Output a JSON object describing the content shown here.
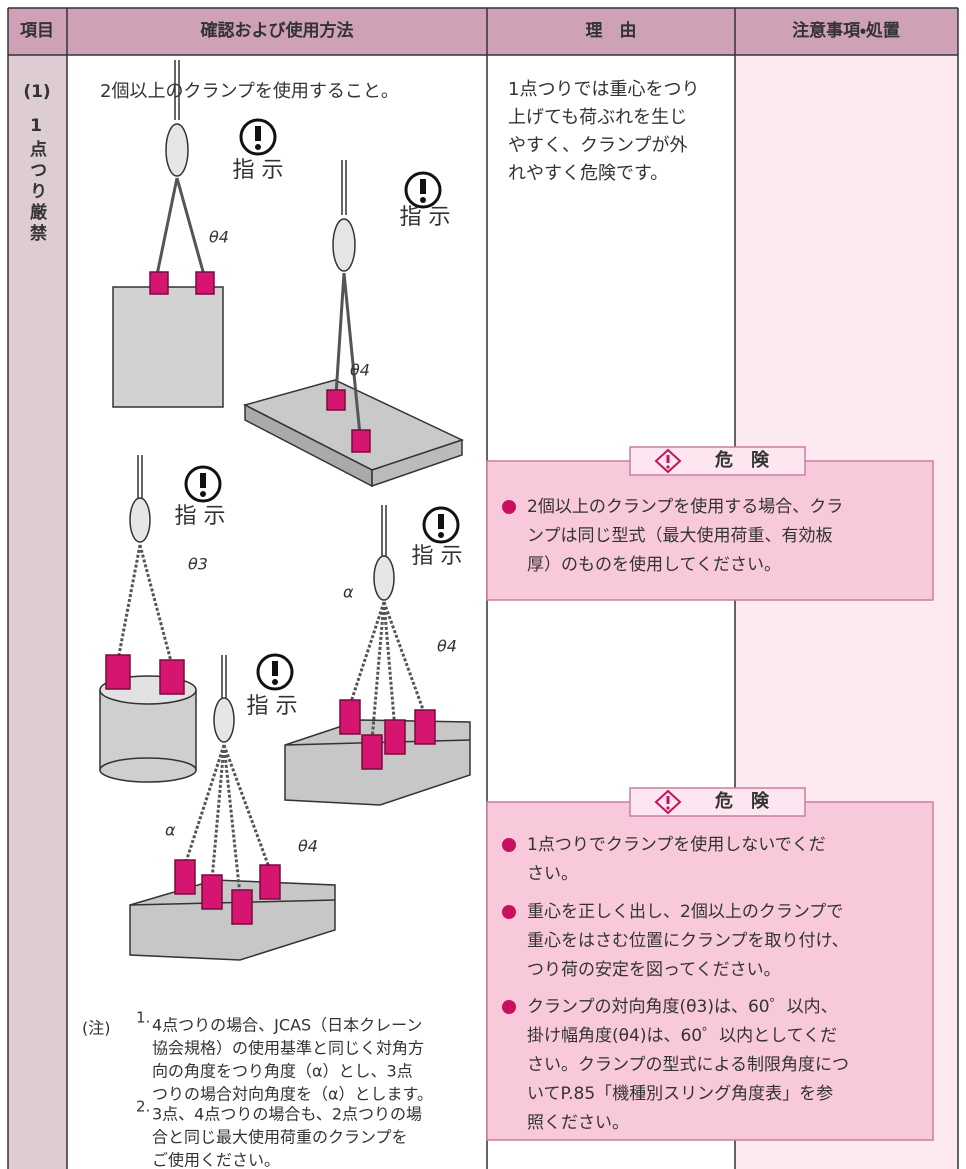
{
  "header": {
    "columns": [
      "項目",
      "確認および使用方法",
      "理　由",
      "注意事項・処置"
    ]
  },
  "item": {
    "number": "(1)",
    "label": "1点つり厳禁"
  },
  "method": {
    "instruction": "2個以上のクランプを使用すること。",
    "figures": [
      {
        "icon_label": "指 示",
        "angles": [
          "θ4"
        ]
      },
      {
        "icon_label": "指 示",
        "angles": [
          "θ4"
        ]
      },
      {
        "icon_label": "指 示",
        "angles": [
          "θ3"
        ]
      },
      {
        "icon_label": "指 示",
        "angles": [
          "α",
          "θ4"
        ]
      },
      {
        "icon_label": "指 示",
        "angles": [
          "α",
          "θ4"
        ]
      }
    ],
    "notes": {
      "marker": "(注)",
      "items": [
        {
          "number": "1.",
          "lines": [
            "4点つりの場合、JCAS（日本クレーン",
            "協会規格）の使用基準と同じく対角方",
            "向の角度をつり角度（α）とし、3点",
            "つりの場合対向角度を（α）とします。"
          ]
        },
        {
          "number": "2.",
          "lines": [
            "3点、4点つりの場合も、2点つりの場",
            "合と同じ最大使用荷重のクランプを",
            "ご使用ください。"
          ]
        }
      ]
    }
  },
  "reason": {
    "lines": [
      "1点つりでは重心をつり",
      "上げても荷ぶれを生じ",
      "やすく、クランプが外",
      "れやすく危険です。"
    ]
  },
  "dangers": [
    {
      "heading": "危　険",
      "bullets": [
        {
          "lines": [
            "2個以上のクランプを使用する場合、クラ",
            "ンプは同じ型式（最大使用荷重、有効板",
            "厚）のものを使用してください。"
          ]
        }
      ]
    },
    {
      "heading": "危　険",
      "bullets": [
        {
          "lines": [
            "1点つりでクランプを使用しないでくだ",
            "さい。"
          ]
        },
        {
          "lines": [
            "重心を正しく出し、2個以上のクランプで",
            "重心をはさむ位置にクランプを取り付け、",
            "つり荷の安定を図ってください。"
          ]
        },
        {
          "lines": [
            "クランプの対向角度(θ3)は、60゜以内、",
            "掛け幅角度(θ4)は、60゜以内としてくだ",
            "さい。クランプの型式による制限角度につ",
            "いてP.85「機種別スリング角度表」を参",
            "照ください。"
          ]
        }
      ]
    }
  ]
}
